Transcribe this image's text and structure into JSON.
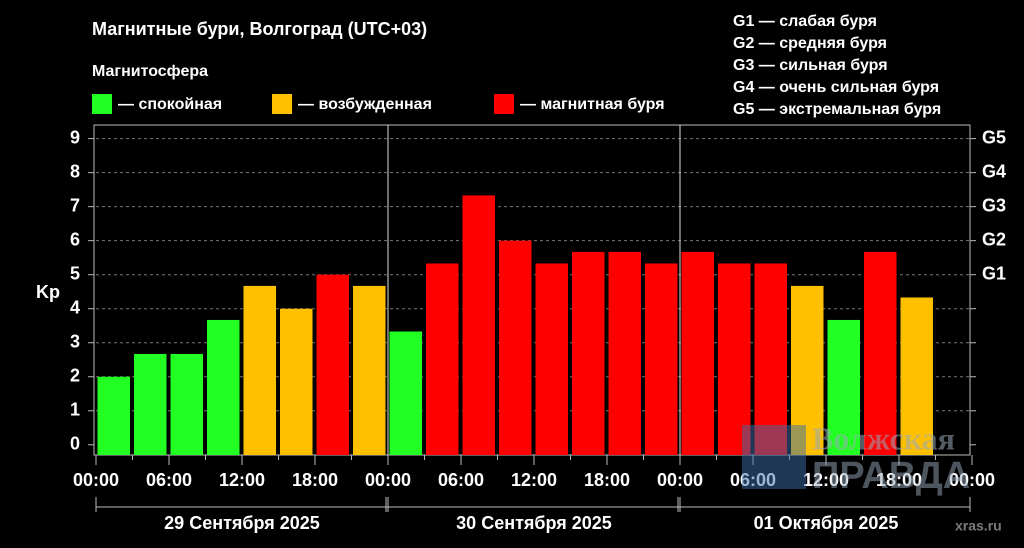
{
  "chart_data": {
    "type": "bar",
    "title": "Магнитные бури, Волгоград (UTC+03)",
    "legend_title": "Магнитосфера",
    "legend": [
      {
        "name": "— спокойная",
        "color": "#22ff22"
      },
      {
        "name": "— возбужденная",
        "color": "#ffc000"
      },
      {
        "name": "— магнитная буря",
        "color": "#ff0000"
      }
    ],
    "storm_scale": [
      "G1 — слабая буря",
      "G2 — средняя буря",
      "G3 — сильная буря",
      "G4 — очень сильная буря",
      "G5 — экстремальная буря"
    ],
    "ylabel": "Kp",
    "values": [
      2.0,
      2.67,
      2.67,
      3.67,
      4.67,
      4.0,
      5.0,
      4.67,
      3.33,
      5.33,
      7.33,
      6.0,
      5.33,
      5.67,
      5.67,
      5.33,
      5.67,
      5.33,
      5.33,
      4.67,
      3.67,
      5.67,
      4.33,
      null
    ],
    "colors": [
      "#22ff22",
      "#22ff22",
      "#22ff22",
      "#22ff22",
      "#ffc000",
      "#ffc000",
      "#ff0000",
      "#ffc000",
      "#22ff22",
      "#ff0000",
      "#ff0000",
      "#ff0000",
      "#ff0000",
      "#ff0000",
      "#ff0000",
      "#ff0000",
      "#ff0000",
      "#ff0000",
      "#ff0000",
      "#ffc000",
      "#22ff22",
      "#ff0000",
      "#ffc000",
      null
    ],
    "xlim": [
      0,
      72
    ],
    "xticks": [
      {
        "value": 0,
        "label": "00:00"
      },
      {
        "value": 6,
        "label": "06:00"
      },
      {
        "value": 12,
        "label": "12:00"
      },
      {
        "value": 18,
        "label": "18:00"
      },
      {
        "value": 24,
        "label": "00:00"
      },
      {
        "value": 30,
        "label": "06:00"
      },
      {
        "value": 36,
        "label": "12:00"
      },
      {
        "value": 42,
        "label": "18:00"
      },
      {
        "value": 48,
        "label": "00:00"
      },
      {
        "value": 54,
        "label": "06:00"
      },
      {
        "value": 60,
        "label": "12:00"
      },
      {
        "value": 66,
        "label": "18:00"
      },
      {
        "value": 72,
        "label": "00:00"
      }
    ],
    "days": [
      "29 Сентября 2025",
      "30 Сентября 2025",
      "01 Октября 2025"
    ],
    "ylim": [
      -0.3,
      9.4
    ],
    "yticks": [
      0,
      1,
      2,
      3,
      4,
      5,
      6,
      7,
      8,
      9
    ],
    "y2ticks": [
      {
        "value": 5,
        "label": "G1"
      },
      {
        "value": 6,
        "label": "G2"
      },
      {
        "value": 7,
        "label": "G3"
      },
      {
        "value": 8,
        "label": "G4"
      },
      {
        "value": 9,
        "label": "G5"
      }
    ],
    "grid": true,
    "watermark": [
      "Волжская",
      "ПРАВДА",
      "xras.ru"
    ]
  }
}
